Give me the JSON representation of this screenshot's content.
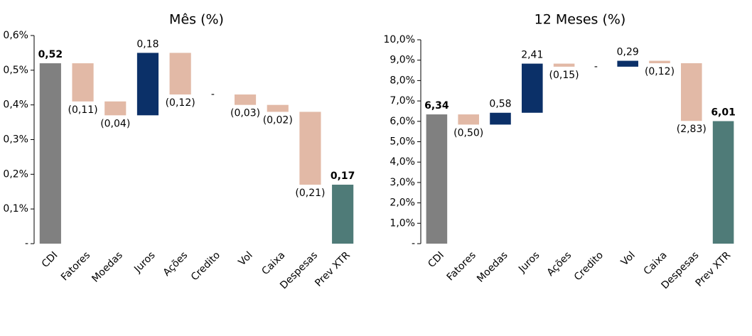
{
  "chart_data": [
    {
      "type": "waterfall",
      "title": "Mês (%)",
      "categories": [
        "CDI",
        "Fatores",
        "Moedas",
        "Juros",
        "Ações",
        "Credito",
        "Vol",
        "Caixa",
        "Despesas",
        "Prev XTR"
      ],
      "measures": [
        "total",
        "relative",
        "relative",
        "relative",
        "relative",
        "relative",
        "relative",
        "relative",
        "relative",
        "total"
      ],
      "values": [
        0.52,
        -0.11,
        -0.04,
        0.18,
        -0.12,
        0,
        -0.03,
        -0.02,
        -0.21,
        0.17
      ],
      "value_labels": [
        "0,52",
        "(0,11)",
        "(0,04)",
        "0,18",
        "(0,12)",
        "-",
        "(0,03)",
        "(0,02)",
        "(0,21)",
        "0,17"
      ],
      "colors": [
        "#808080",
        "#e2b9a6",
        "#e2b9a6",
        "#0b3068",
        "#e2b9a6",
        "#e2b9a6",
        "#e2b9a6",
        "#e2b9a6",
        "#e2b9a6",
        "#4f7b78"
      ],
      "ylim": [
        0,
        0.6
      ],
      "yticks": [
        {
          "value": 0,
          "label": "-"
        },
        {
          "value": 0.1,
          "label": "0,1%"
        },
        {
          "value": 0.2,
          "label": "0,2%"
        },
        {
          "value": 0.3,
          "label": "0,3%"
        },
        {
          "value": 0.4,
          "label": "0,4%"
        },
        {
          "value": 0.5,
          "label": "0,5%"
        },
        {
          "value": 0.6,
          "label": "0,6%"
        }
      ]
    },
    {
      "type": "waterfall",
      "title": "12 Meses (%)",
      "categories": [
        "CDI",
        "Fatores",
        "Moedas",
        "Juros",
        "Ações",
        "Credito",
        "Vol",
        "Caixa",
        "Despesas",
        "Prev XTR"
      ],
      "measures": [
        "total",
        "relative",
        "relative",
        "relative",
        "relative",
        "relative",
        "relative",
        "relative",
        "relative",
        "total"
      ],
      "values": [
        6.34,
        -0.5,
        0.58,
        2.41,
        -0.15,
        0,
        0.29,
        -0.12,
        -2.83,
        6.01
      ],
      "value_labels": [
        "6,34",
        "(0,50)",
        "0,58",
        "2,41",
        "(0,15)",
        "-",
        "0,29",
        "(0,12)",
        "(2,83)",
        "6,01"
      ],
      "colors": [
        "#808080",
        "#e2b9a6",
        "#0b3068",
        "#0b3068",
        "#e2b9a6",
        "#e2b9a6",
        "#0b3068",
        "#e2b9a6",
        "#e2b9a6",
        "#4f7b78"
      ],
      "ylim": [
        0,
        10
      ],
      "yticks": [
        {
          "value": 0,
          "label": "-"
        },
        {
          "value": 1,
          "label": "1,0%"
        },
        {
          "value": 2,
          "label": "2,0%"
        },
        {
          "value": 3,
          "label": "3,0%"
        },
        {
          "value": 4,
          "label": "4,0%"
        },
        {
          "value": 5,
          "label": "5,0%"
        },
        {
          "value": 6,
          "label": "6,0%"
        },
        {
          "value": 7,
          "label": "7,0%"
        },
        {
          "value": 8,
          "label": "8,0%"
        },
        {
          "value": 9,
          "label": "9,0%"
        },
        {
          "value": 10,
          "label": "10,0%"
        }
      ]
    }
  ]
}
